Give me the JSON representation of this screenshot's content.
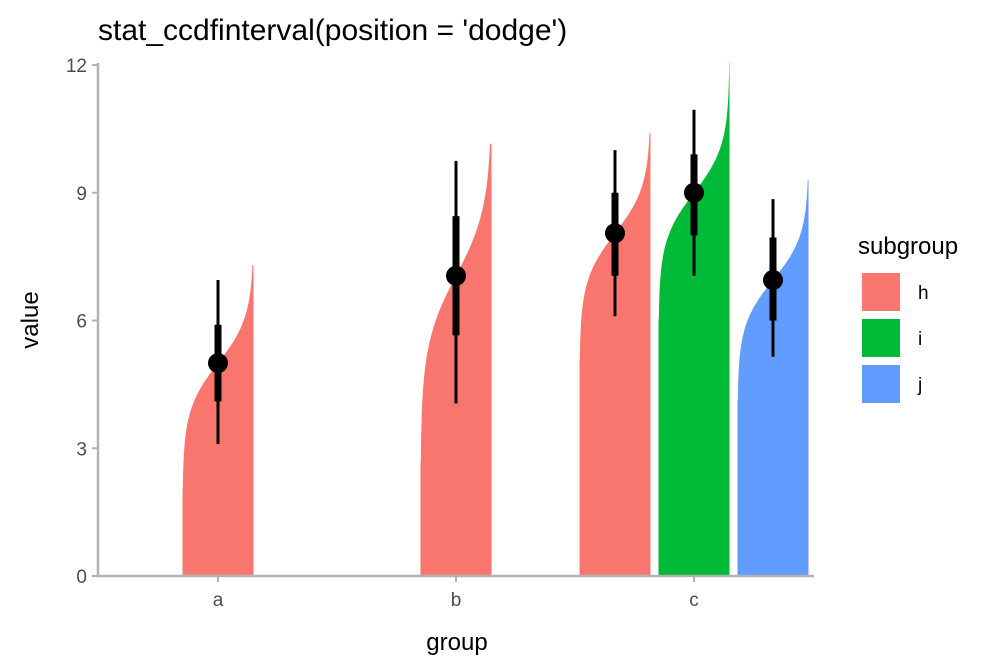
{
  "chart_data": {
    "type": "area",
    "title": "stat_ccdfinterval(position = 'dodge')",
    "xlabel": "group",
    "ylabel": "value",
    "ylim": [
      0,
      12
    ],
    "yticks": [
      0,
      3,
      6,
      9,
      12
    ],
    "categories": [
      "a",
      "b",
      "c"
    ],
    "legend": {
      "title": "subgroup",
      "placement": "right",
      "entries": [
        {
          "label": "h",
          "color": "#F8766D"
        },
        {
          "label": "i",
          "color": "#00BA38"
        },
        {
          "label": "j",
          "color": "#619CFF"
        }
      ]
    },
    "grid": false,
    "series": [
      {
        "group": "a",
        "subgroup": "h",
        "color": "#F8766D",
        "ccdf_max": 7.3,
        "median": 5.0,
        "interval_66": [
          4.1,
          5.9
        ],
        "interval_95": [
          3.1,
          6.95
        ]
      },
      {
        "group": "b",
        "subgroup": "h",
        "color": "#F8766D",
        "ccdf_max": 10.15,
        "median": 7.05,
        "interval_66": [
          5.65,
          8.45
        ],
        "interval_95": [
          4.05,
          9.75
        ]
      },
      {
        "group": "c",
        "subgroup": "h",
        "color": "#F8766D",
        "ccdf_max": 10.4,
        "median": 8.05,
        "interval_66": [
          7.05,
          9.0
        ],
        "interval_95": [
          6.1,
          10.0
        ]
      },
      {
        "group": "c",
        "subgroup": "i",
        "color": "#00BA38",
        "ccdf_max": 12.05,
        "median": 9.0,
        "interval_66": [
          8.0,
          9.9
        ],
        "interval_95": [
          7.05,
          10.95
        ]
      },
      {
        "group": "c",
        "subgroup": "j",
        "color": "#619CFF",
        "ccdf_max": 9.3,
        "median": 6.95,
        "interval_66": [
          6.0,
          7.95
        ],
        "interval_95": [
          5.15,
          8.85
        ]
      }
    ]
  }
}
